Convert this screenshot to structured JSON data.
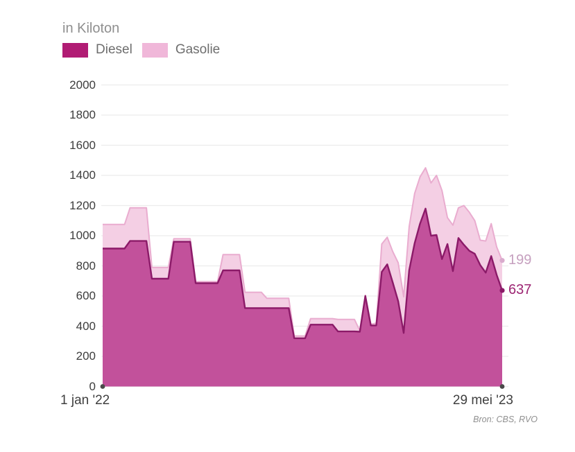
{
  "title": "in Kiloton",
  "legend": {
    "diesel_label": "Diesel",
    "gasolie_label": "Gasolie",
    "diesel_color": "#b11c74",
    "gasolie_color": "#f0b7d9"
  },
  "x_axis": {
    "start_label": "1 jan '22",
    "end_label": "29 mei '23"
  },
  "end_labels": {
    "gasolie": "199",
    "diesel": "637"
  },
  "source": "Bron: CBS, RVO",
  "colors": {
    "diesel_fill": "#c2519b",
    "diesel_stroke": "#8b1a68",
    "gasolie_fill": "#f4cfe4",
    "gasolie_stroke": "#e9accf",
    "grid": "#ececec",
    "axis_dot": "#4a4a4a",
    "end_dot_gasolie": "#d9abcd",
    "end_dot_diesel": "#8b1a68"
  },
  "chart_data": {
    "type": "area",
    "stacked": true,
    "title": "in Kiloton",
    "ylabel": "Kiloton",
    "xlabel": "",
    "x_range_labels": [
      "1 jan '22",
      "29 mei '23"
    ],
    "x_unit": "week",
    "n_points": 74,
    "ylim": [
      0,
      2000
    ],
    "yticks": [
      0,
      200,
      400,
      600,
      800,
      1000,
      1200,
      1400,
      1600,
      1800,
      2000
    ],
    "grid": true,
    "legend_position": "top-left",
    "series": [
      {
        "name": "Diesel",
        "values": [
          915,
          915,
          915,
          915,
          915,
          965,
          965,
          965,
          965,
          715,
          715,
          715,
          715,
          960,
          960,
          960,
          960,
          685,
          685,
          685,
          685,
          685,
          770,
          770,
          770,
          770,
          520,
          520,
          520,
          520,
          520,
          520,
          520,
          520,
          520,
          320,
          320,
          320,
          410,
          410,
          410,
          410,
          410,
          365,
          365,
          365,
          365,
          363,
          600,
          405,
          405,
          760,
          810,
          690,
          565,
          355,
          770,
          950,
          1080,
          1180,
          1000,
          1005,
          845,
          945,
          765,
          985,
          940,
          900,
          880,
          805,
          755,
          865,
          740,
          637
        ]
      },
      {
        "name": "Gasolie",
        "values": [
          160,
          160,
          160,
          160,
          160,
          220,
          220,
          220,
          220,
          75,
          75,
          75,
          75,
          20,
          20,
          20,
          20,
          10,
          10,
          10,
          10,
          10,
          105,
          105,
          105,
          105,
          105,
          105,
          105,
          105,
          65,
          65,
          65,
          65,
          65,
          15,
          15,
          15,
          40,
          40,
          40,
          40,
          40,
          80,
          80,
          80,
          80,
          7,
          5,
          8,
          15,
          185,
          180,
          205,
          255,
          240,
          290,
          330,
          310,
          270,
          350,
          395,
          455,
          175,
          305,
          200,
          260,
          255,
          220,
          165,
          210,
          215,
          185,
          199
        ]
      }
    ],
    "last_values": {
      "Diesel": 637,
      "Gasolie": 199
    }
  }
}
